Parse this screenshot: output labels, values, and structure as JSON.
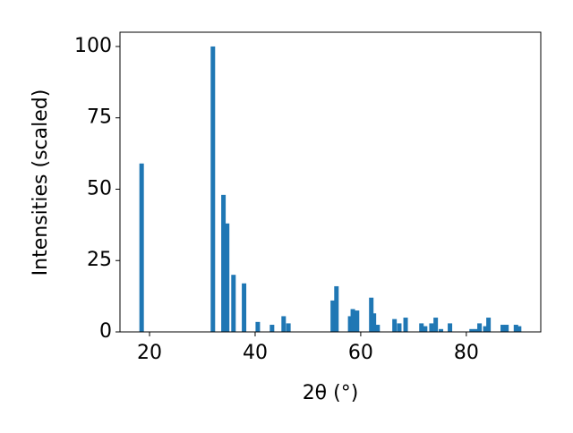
{
  "chart_data": {
    "type": "bar",
    "xlabel": "2θ (°)",
    "ylabel": "Intensities (scaled)",
    "x": [
      18.5,
      32.0,
      34.0,
      34.7,
      35.9,
      37.9,
      40.5,
      43.2,
      45.4,
      46.3,
      54.7,
      55.4,
      58.0,
      58.5,
      59.3,
      62.0,
      62.5,
      63.2,
      66.4,
      67.3,
      68.5,
      71.5,
      72.2,
      73.4,
      74.2,
      75.2,
      76.9,
      81.0,
      81.8,
      82.5,
      83.6,
      84.2,
      86.9,
      87.6,
      89.4,
      90.0
    ],
    "values": [
      59,
      100,
      48,
      38,
      20,
      17,
      3.5,
      2.5,
      5.5,
      3,
      11,
      16,
      5.5,
      8,
      7.5,
      12,
      6.5,
      2.5,
      4.5,
      3,
      5,
      3,
      2,
      3,
      5,
      1,
      3,
      1,
      1,
      3,
      2,
      5,
      2.5,
      2.5,
      2.5,
      2
    ],
    "color": "#1f77b4",
    "xlim": [
      14.4,
      94.1
    ],
    "xticks": [
      20,
      40,
      60,
      80
    ],
    "ylim": [
      0,
      105
    ],
    "yticks": [
      0,
      25,
      50,
      75,
      100
    ],
    "grid": false
  }
}
